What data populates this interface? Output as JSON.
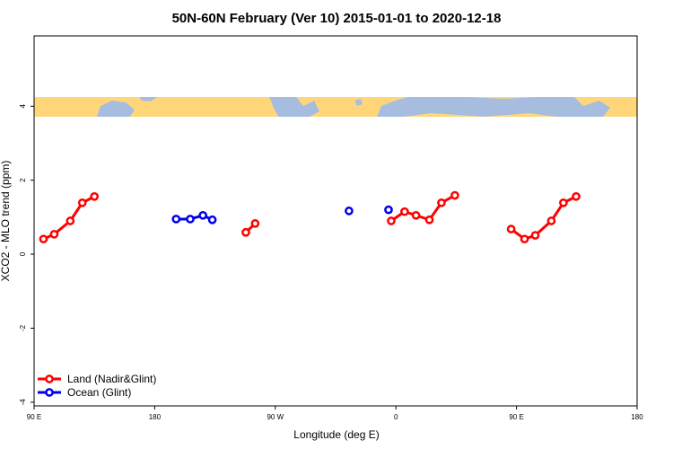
{
  "chart_data": {
    "type": "line",
    "title": "50N-60N February (Ver 10)   2015-01-01 to 2020-12-18",
    "x_label": "Longitude (deg E)",
    "y_label": "XCO2 - MLO trend (ppm)",
    "xlim": [
      90,
      540
    ],
    "ylim": [
      -4.1,
      5.9
    ],
    "xticks": [
      {
        "value": 90,
        "label": "90 E"
      },
      180,
      {
        "value": 270,
        "label": "90 W"
      },
      {
        "value": 360,
        "label": "0"
      },
      {
        "value": 450,
        "label": "90 E"
      },
      {
        "value": 540,
        "label": "180"
      }
    ],
    "yticks": [
      -4,
      -2,
      0,
      2,
      4
    ],
    "legend": "bottom-left",
    "series": [
      {
        "name": "Land (Nadir&Glint)",
        "color": "#ff0000",
        "x": [
          97,
          105,
          117,
          126,
          135,
          null,
          248,
          255,
          null,
          356.5,
          366.5,
          375,
          385,
          394,
          404,
          null,
          446,
          456,
          464,
          476,
          485,
          494.5
        ],
        "values": [
          0.41,
          0.54,
          0.9,
          1.39,
          1.56,
          null,
          0.59,
          0.83,
          null,
          0.9,
          1.15,
          1.05,
          0.93,
          1.39,
          1.59,
          null,
          0.68,
          0.41,
          0.51,
          0.9,
          1.39,
          1.56
        ]
      },
      {
        "name": "Ocean (Glint)",
        "color": "#0000ee",
        "x": [
          196,
          206.5,
          216,
          223,
          null,
          325,
          null,
          354.5
        ],
        "values": [
          0.95,
          0.95,
          1.05,
          0.93,
          null,
          1.17,
          null,
          1.2
        ]
      }
    ]
  }
}
